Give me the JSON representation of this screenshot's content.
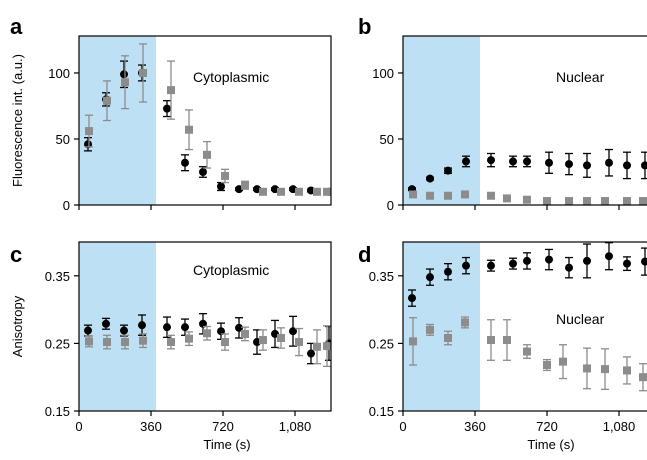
{
  "chart_data": [
    {
      "panel": "a",
      "type": "scatter",
      "annotation": "Cytoplasmic",
      "ylabel": "Fluorescence int. (a.u.)",
      "xlabel": "",
      "xlim": [
        0,
        1260
      ],
      "ylim": [
        0,
        128
      ],
      "yticks": [
        0,
        50,
        100
      ],
      "xticks": [
        0,
        360,
        720,
        1080
      ],
      "show_x_tick_labels": false,
      "shaded_x_range": [
        0,
        385
      ],
      "shade_color": "#bde0f5",
      "series": [
        {
          "marker": "circle",
          "color": "#000000",
          "x": [
            45,
            135,
            225,
            315,
            440,
            530,
            620,
            710,
            800,
            890,
            980,
            1070,
            1160,
            1250
          ],
          "y": [
            46,
            80,
            99,
            100,
            73,
            32,
            25,
            14,
            12,
            12,
            12,
            12,
            11,
            10
          ],
          "err": [
            5,
            5,
            10,
            6,
            6,
            6,
            4,
            3,
            1,
            1,
            1,
            1,
            1,
            1
          ]
        },
        {
          "marker": "square",
          "color": "#8c8c8c",
          "x": [
            50,
            140,
            230,
            320,
            460,
            550,
            640,
            730,
            830,
            920,
            1010,
            1100,
            1190,
            1240
          ],
          "y": [
            56,
            79,
            93,
            100,
            87,
            57,
            38,
            22,
            15,
            10,
            10,
            10,
            10,
            10
          ],
          "err": [
            12,
            15,
            20,
            22,
            22,
            15,
            10,
            5,
            3,
            1,
            1,
            1,
            1,
            1
          ]
        }
      ]
    },
    {
      "panel": "b",
      "type": "scatter",
      "annotation": "Nuclear",
      "ylabel": "",
      "xlabel": "",
      "xlim": [
        0,
        1260
      ],
      "ylim": [
        0,
        128
      ],
      "yticks": [
        0,
        50,
        100
      ],
      "xticks": [
        0,
        360,
        720,
        1080
      ],
      "show_x_tick_labels": false,
      "shaded_x_range": [
        0,
        385
      ],
      "shade_color": "#bde0f5",
      "series": [
        {
          "marker": "circle",
          "color": "#000000",
          "x": [
            45,
            135,
            225,
            315,
            440,
            550,
            620,
            730,
            830,
            920,
            1030,
            1120,
            1210
          ],
          "y": [
            12,
            20,
            26,
            33,
            34,
            33,
            33,
            32,
            31,
            30,
            32,
            30,
            30
          ],
          "err": [
            1,
            1,
            2,
            4,
            5,
            4,
            4,
            8,
            8,
            9,
            10,
            10,
            10
          ]
        },
        {
          "marker": "square",
          "color": "#8c8c8c",
          "x": [
            50,
            135,
            225,
            310,
            440,
            520,
            620,
            720,
            830,
            920,
            1010,
            1120,
            1200
          ],
          "y": [
            8,
            7,
            7,
            8,
            7,
            5,
            4,
            3,
            3,
            3,
            3,
            3,
            3
          ],
          "err": [
            1,
            1,
            1,
            1,
            1,
            1,
            1,
            1,
            1,
            1,
            1,
            1,
            1
          ]
        }
      ]
    },
    {
      "panel": "c",
      "type": "scatter",
      "annotation": "Cytoplasmic",
      "ylabel": "Anisotropy",
      "xlabel": "Time (s)",
      "xlim": [
        0,
        1260
      ],
      "ylim": [
        0.15,
        0.4
      ],
      "yticks": [
        0.15,
        0.25,
        0.35
      ],
      "ytick_labels": [
        "0.15",
        "0.25",
        "0.35"
      ],
      "xticks": [
        0,
        360,
        720,
        1080
      ],
      "xtick_labels": [
        "0",
        "360",
        "720",
        "1,080"
      ],
      "show_x_tick_labels": true,
      "shaded_x_range": [
        0,
        385
      ],
      "shade_color": "#bde0f5",
      "series": [
        {
          "marker": "circle",
          "color": "#000000",
          "x": [
            45,
            135,
            225,
            315,
            440,
            530,
            620,
            710,
            800,
            890,
            980,
            1070,
            1160,
            1250
          ],
          "y": [
            0.269,
            0.279,
            0.269,
            0.277,
            0.274,
            0.274,
            0.279,
            0.268,
            0.273,
            0.252,
            0.264,
            0.268,
            0.235,
            0.25
          ],
          "err": [
            0.008,
            0.008,
            0.008,
            0.015,
            0.015,
            0.012,
            0.015,
            0.012,
            0.015,
            0.018,
            0.02,
            0.022,
            0.015,
            0.025
          ]
        },
        {
          "marker": "square",
          "color": "#8c8c8c",
          "x": [
            50,
            140,
            230,
            320,
            460,
            550,
            640,
            730,
            830,
            920,
            1010,
            1100,
            1190,
            1240
          ],
          "y": [
            0.253,
            0.252,
            0.252,
            0.254,
            0.252,
            0.257,
            0.265,
            0.252,
            0.264,
            0.255,
            0.258,
            0.252,
            0.245,
            0.246
          ],
          "err": [
            0.008,
            0.01,
            0.01,
            0.01,
            0.01,
            0.01,
            0.01,
            0.012,
            0.01,
            0.015,
            0.015,
            0.02,
            0.025,
            0.03
          ]
        }
      ]
    },
    {
      "panel": "d",
      "type": "scatter",
      "annotation": "Nuclear",
      "ylabel": "",
      "xlabel": "Time (s)",
      "xlim": [
        0,
        1260
      ],
      "ylim": [
        0.15,
        0.4
      ],
      "yticks": [
        0.15,
        0.25,
        0.35
      ],
      "ytick_labels": [
        "0.15",
        "0.25",
        "0.35"
      ],
      "xticks": [
        0,
        360,
        720,
        1080
      ],
      "xtick_labels": [
        "0",
        "360",
        "720",
        "1,080"
      ],
      "show_x_tick_labels": true,
      "shaded_x_range": [
        0,
        385
      ],
      "shade_color": "#bde0f5",
      "series": [
        {
          "marker": "circle",
          "color": "#000000",
          "x": [
            45,
            135,
            225,
            315,
            440,
            550,
            620,
            730,
            830,
            920,
            1030,
            1120,
            1210
          ],
          "y": [
            0.317,
            0.348,
            0.356,
            0.365,
            0.365,
            0.368,
            0.372,
            0.374,
            0.362,
            0.372,
            0.379,
            0.368,
            0.371
          ],
          "err": [
            0.012,
            0.012,
            0.012,
            0.012,
            0.008,
            0.008,
            0.012,
            0.015,
            0.015,
            0.025,
            0.02,
            0.01,
            0.02
          ]
        },
        {
          "marker": "square",
          "color": "#8c8c8c",
          "x": [
            50,
            135,
            225,
            310,
            440,
            520,
            620,
            720,
            800,
            920,
            1010,
            1120,
            1200
          ],
          "y": [
            0.253,
            0.27,
            0.258,
            0.281,
            0.255,
            0.255,
            0.238,
            0.218,
            0.223,
            0.213,
            0.212,
            0.21,
            0.2
          ],
          "err": [
            0.035,
            0.008,
            0.01,
            0.008,
            0.03,
            0.03,
            0.01,
            0.008,
            0.025,
            0.03,
            0.03,
            0.02,
            0.02
          ]
        }
      ]
    }
  ]
}
